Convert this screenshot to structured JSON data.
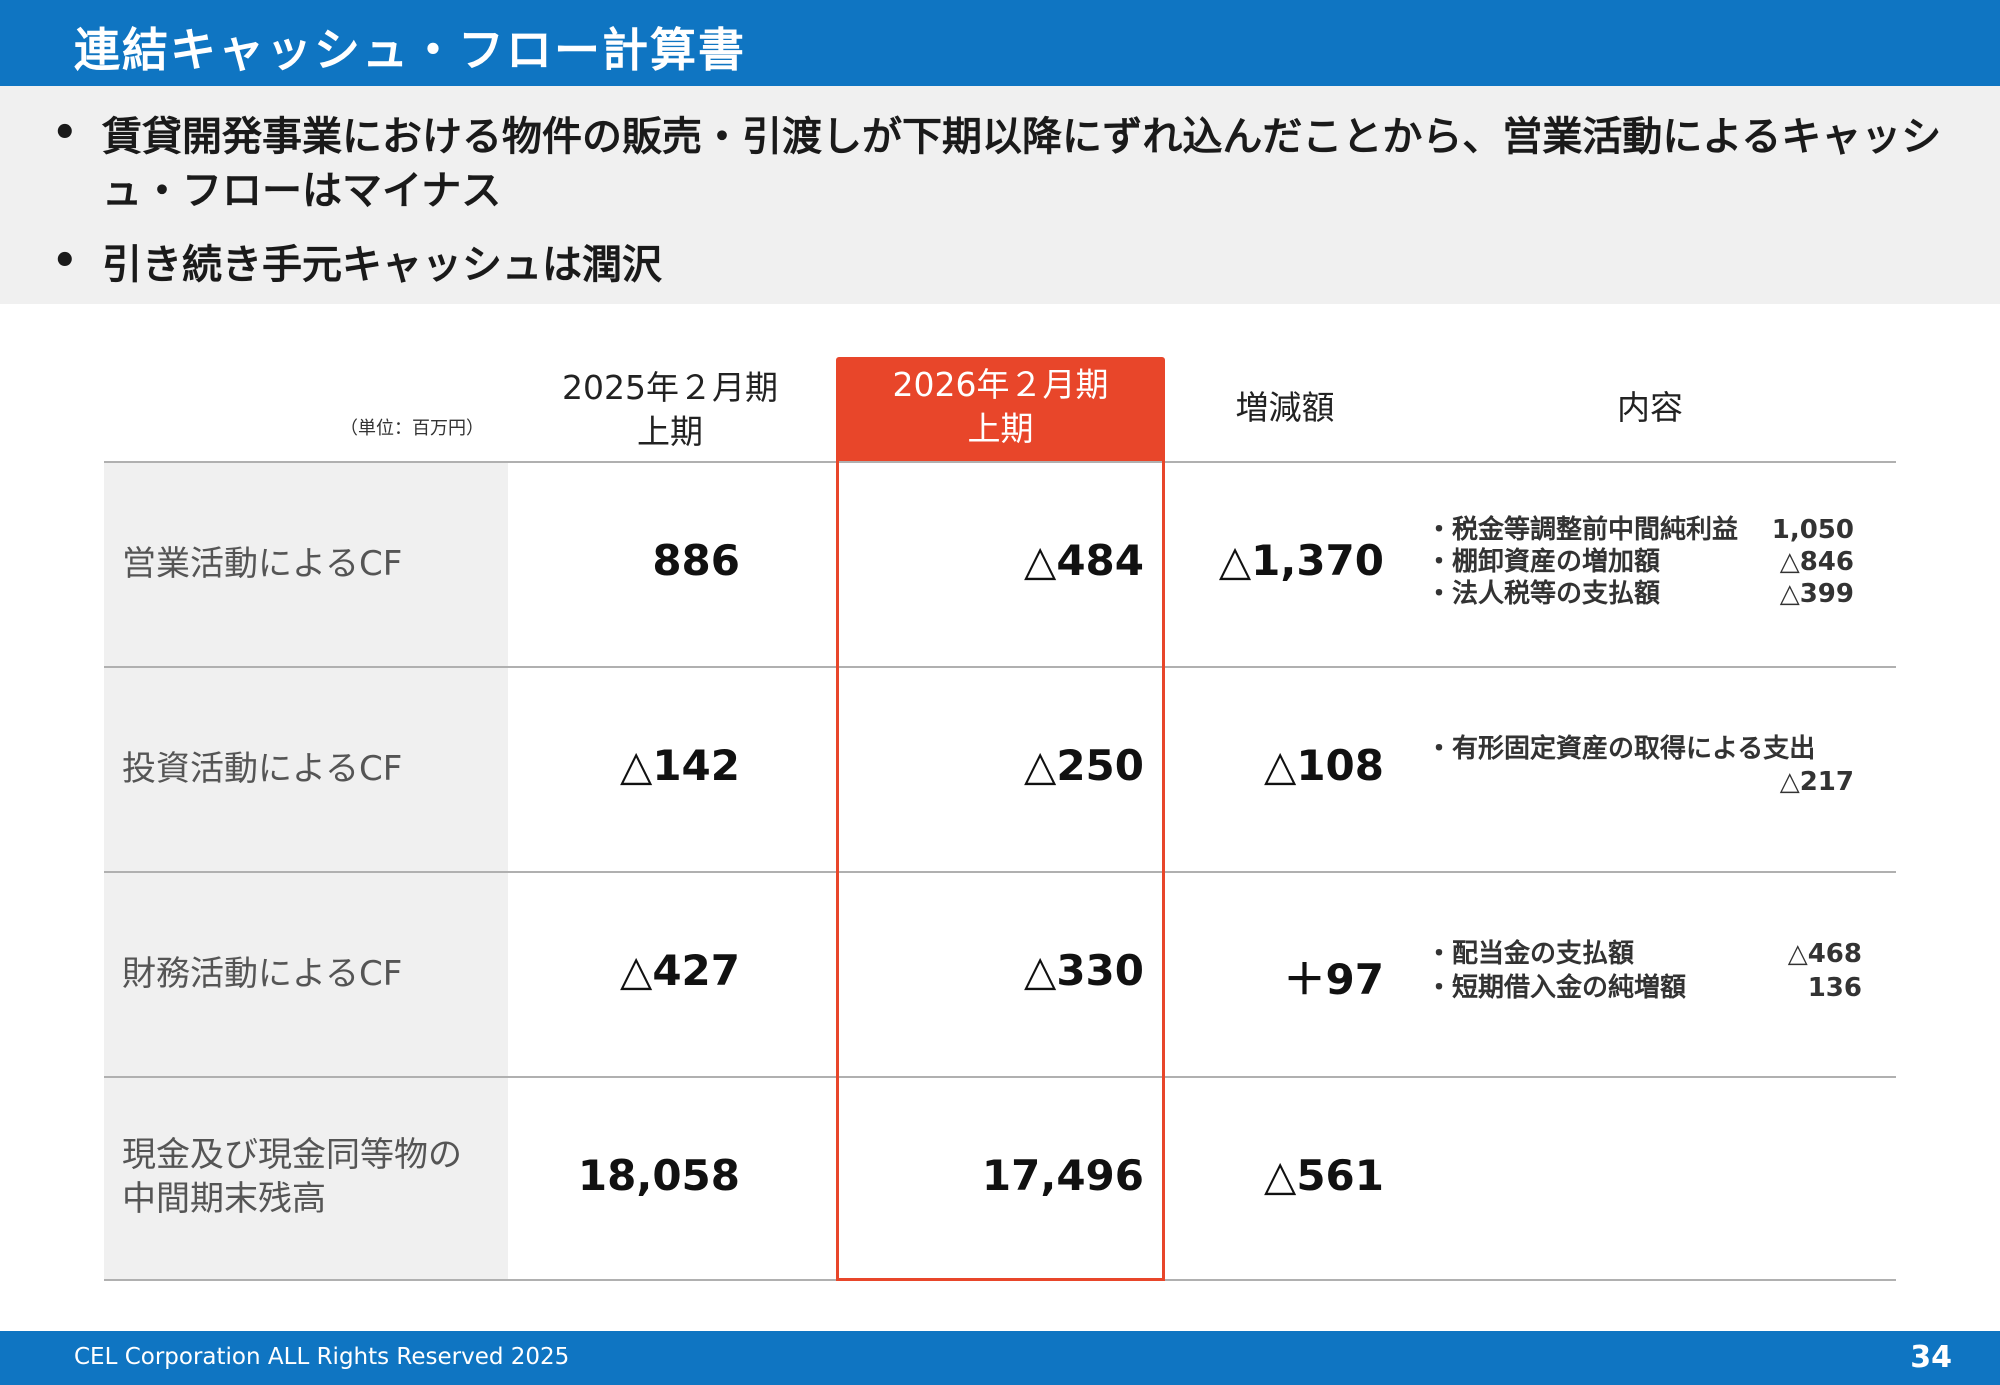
{
  "title": "連結キャッシュ・フロー計算書",
  "bullets": [
    "賃貸開発事業における物件の販売・引渡しが下期以降にずれ込んだことから、営業活動によるキャッシュ・フローはマイナス",
    "引き続き手元キャッシュは潤沢"
  ],
  "bullet_symbol": "•",
  "table": {
    "unit_label": "（単位：百万円）",
    "headers": {
      "prev_line1": "2025年２月期",
      "prev_line2": "上期",
      "curr_line1": "2026年２月期",
      "curr_line2": "上期",
      "change": "増減額",
      "content": "内容"
    },
    "rows": [
      {
        "label": "営業活動によるCF",
        "prev": "886",
        "curr": "△484",
        "change": "△1,370",
        "details": [
          {
            "text": "・税金等調整前中間純利益",
            "value": "1,050"
          },
          {
            "text": "・棚卸資産の増加額",
            "value": "△846"
          },
          {
            "text": "・法人税等の支払額",
            "value": "△399"
          }
        ]
      },
      {
        "label": "投資活動によるCF",
        "prev": "△142",
        "curr": "△250",
        "change": "△108",
        "details": [
          {
            "text": "・有形固定資産の取得による支出",
            "value": ""
          },
          {
            "text": "",
            "value": "△217"
          }
        ]
      },
      {
        "label": "財務活動によるCF",
        "prev": "△427",
        "curr": "△330",
        "change": "＋97",
        "details": [
          {
            "text": "・配当金の支払額",
            "value": "△468"
          },
          {
            "text": "・短期借入金の純増額",
            "value": "136"
          }
        ]
      },
      {
        "label_line1": "現金及び現金同等物の",
        "label_line2": "中間期末残高",
        "prev": "18,058",
        "curr": "17,496",
        "change": "△561"
      }
    ]
  },
  "footer": {
    "copyright": "CEL Corporation ALL Rights Reserved 2025",
    "page": "34"
  },
  "colors": {
    "brand_blue": "#0f75c2",
    "highlight_red": "#e8462a",
    "band_gray": "#f0f0f0"
  }
}
